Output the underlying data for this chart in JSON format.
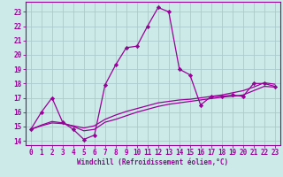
{
  "xlabel": "Windchill (Refroidissement éolien,°C)",
  "background_color": "#cceae8",
  "grid_color": "#aacccc",
  "line_color": "#990099",
  "xlim": [
    -0.5,
    23.5
  ],
  "ylim": [
    13.7,
    23.7
  ],
  "xticks": [
    0,
    1,
    2,
    3,
    4,
    5,
    6,
    7,
    8,
    9,
    10,
    11,
    12,
    13,
    14,
    15,
    16,
    17,
    18,
    19,
    20,
    21,
    22,
    23
  ],
  "yticks": [
    14,
    15,
    16,
    17,
    18,
    19,
    20,
    21,
    22,
    23
  ],
  "series1_x": [
    0,
    1,
    2,
    3,
    4,
    5,
    6,
    7,
    8,
    9,
    10,
    11,
    12,
    13,
    14,
    15,
    16,
    17,
    18,
    19,
    20,
    21,
    22,
    23
  ],
  "series1_y": [
    14.8,
    16.0,
    17.0,
    15.3,
    14.8,
    14.1,
    14.4,
    17.9,
    19.3,
    20.5,
    20.6,
    22.0,
    23.3,
    23.0,
    19.0,
    18.6,
    16.5,
    17.1,
    17.1,
    17.2,
    17.1,
    18.0,
    18.0,
    17.8
  ],
  "series2_x": [
    0,
    1,
    2,
    3,
    4,
    5,
    6,
    7,
    8,
    9,
    10,
    11,
    12,
    13,
    14,
    15,
    16,
    17,
    18,
    19,
    20,
    21,
    22,
    23
  ],
  "series2_y": [
    14.8,
    15.1,
    15.35,
    15.25,
    15.0,
    14.7,
    14.8,
    15.3,
    15.5,
    15.75,
    16.0,
    16.2,
    16.4,
    16.55,
    16.65,
    16.75,
    16.85,
    16.95,
    17.05,
    17.1,
    17.2,
    17.5,
    17.8,
    17.75
  ],
  "series3_x": [
    0,
    1,
    2,
    3,
    4,
    5,
    6,
    7,
    8,
    9,
    10,
    11,
    12,
    13,
    14,
    15,
    16,
    17,
    18,
    19,
    20,
    21,
    22,
    23
  ],
  "series3_y": [
    14.8,
    15.05,
    15.25,
    15.2,
    15.05,
    14.9,
    15.05,
    15.5,
    15.8,
    16.05,
    16.25,
    16.45,
    16.65,
    16.75,
    16.85,
    16.9,
    17.0,
    17.1,
    17.2,
    17.35,
    17.5,
    17.75,
    18.05,
    17.95
  ]
}
